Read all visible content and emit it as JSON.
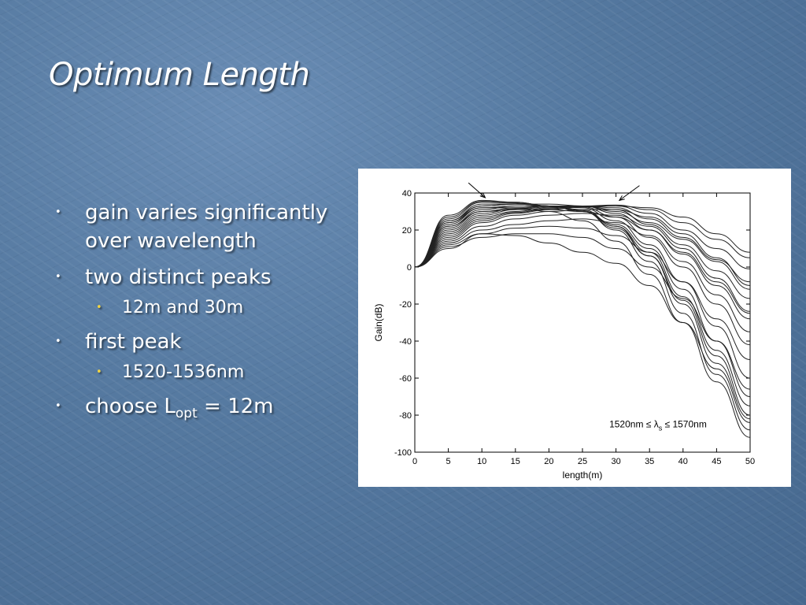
{
  "slide": {
    "title": "Optimum Length",
    "bullets": [
      {
        "text": "gain varies significantly over wavelength",
        "level": 1
      },
      {
        "text": "two distinct peaks",
        "level": 1
      },
      {
        "text": "12m and 30m",
        "level": 2
      },
      {
        "text": "first peak",
        "level": 1
      },
      {
        "text": "1520-1536nm",
        "level": 2
      },
      {
        "text_pre": "choose L",
        "text_sub": "opt",
        "text_post": " = 12m",
        "level": 1
      }
    ]
  },
  "chart_data": {
    "type": "line",
    "xlabel": "length(m)",
    "ylabel": "Gain(dB)",
    "xlim": [
      0,
      50
    ],
    "ylim": [
      -100,
      40
    ],
    "xticks": [
      0,
      5,
      10,
      15,
      20,
      25,
      30,
      35,
      40,
      45,
      50
    ],
    "yticks": [
      40,
      20,
      0,
      -20,
      -40,
      -60,
      -80,
      -100
    ],
    "grid": false,
    "annotation": {
      "pre": "1520nm ≤ λ",
      "sub": "s",
      "post": " ≤ 1570nm"
    },
    "x": [
      0,
      5,
      10,
      15,
      20,
      25,
      30,
      35,
      40,
      45,
      50
    ],
    "series": [
      {
        "values": [
          0,
          28,
          36,
          35,
          33,
          30,
          23,
          10,
          -12,
          -40,
          -70
        ]
      },
      {
        "values": [
          0,
          27,
          35.5,
          35,
          33,
          30,
          22,
          8,
          -16,
          -45,
          -75
        ]
      },
      {
        "values": [
          0,
          26,
          35,
          34.5,
          33,
          30,
          21,
          6,
          -20,
          -52,
          -82
        ]
      },
      {
        "values": [
          0,
          25,
          34,
          34,
          33,
          30.5,
          20,
          3,
          -25,
          -58,
          -88
        ]
      },
      {
        "values": [
          0,
          24,
          33,
          34,
          33,
          31,
          22,
          6,
          -18,
          -48,
          -80
        ]
      },
      {
        "values": [
          0,
          23,
          32,
          33,
          33,
          32,
          25,
          12,
          -8,
          -32,
          -60
        ]
      },
      {
        "values": [
          0,
          22,
          31,
          33,
          33,
          32.5,
          27,
          16,
          0,
          -20,
          -42
        ]
      },
      {
        "values": [
          0,
          21,
          30,
          32,
          33,
          33,
          29,
          20,
          7,
          -10,
          -28
        ]
      },
      {
        "values": [
          0,
          20,
          29,
          31.5,
          33,
          33,
          31,
          23,
          12,
          -2,
          -17
        ]
      },
      {
        "values": [
          0,
          19,
          28,
          31,
          32.5,
          33,
          32,
          26,
          16,
          4,
          -8
        ]
      },
      {
        "values": [
          0,
          18,
          27,
          30,
          32,
          33,
          33,
          29,
          20,
          10,
          -1
        ]
      },
      {
        "values": [
          0,
          17,
          26,
          29.5,
          31.5,
          33,
          33.5,
          31,
          24,
          15,
          5
        ]
      },
      {
        "values": [
          0,
          16,
          25,
          29,
          31,
          32.5,
          33,
          32,
          27,
          18,
          8
        ]
      },
      {
        "values": [
          0,
          15,
          24,
          28,
          30,
          31,
          31,
          27,
          18,
          5,
          -10
        ]
      },
      {
        "values": [
          0,
          14,
          22,
          26,
          28,
          29,
          28,
          22,
          10,
          -6,
          -24
        ]
      },
      {
        "values": [
          0,
          13,
          20,
          23,
          25,
          26,
          24,
          17,
          3,
          -15,
          -35
        ]
      },
      {
        "values": [
          0,
          12,
          18,
          21,
          22,
          21,
          17,
          8,
          -8,
          -28,
          -50
        ]
      },
      {
        "values": [
          0,
          11,
          16,
          18,
          18,
          16,
          10,
          0,
          -17,
          -40,
          -66
        ]
      },
      {
        "values": [
          0,
          10,
          18,
          17,
          13,
          8,
          2,
          -10,
          -30,
          -55,
          -84
        ]
      },
      {
        "values": [
          0,
          24,
          32,
          32,
          30,
          25,
          14,
          -4,
          -30,
          -62,
          -92
        ]
      },
      {
        "values": [
          0,
          22,
          30,
          31,
          31,
          30,
          27,
          20,
          8,
          -8,
          -25
        ]
      },
      {
        "values": [
          0,
          25,
          33,
          34,
          34,
          33,
          30,
          24,
          15,
          3,
          -12
        ]
      }
    ],
    "arrows": [
      {
        "from": [
          8,
          45.5
        ],
        "to": [
          10.5,
          37.5
        ]
      },
      {
        "from": [
          33.5,
          44
        ],
        "to": [
          30.5,
          36
        ]
      }
    ]
  }
}
